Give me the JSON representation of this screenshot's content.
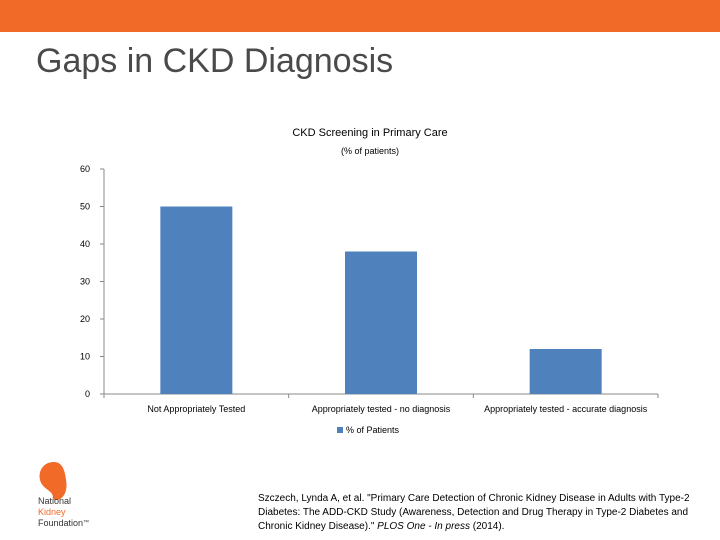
{
  "slide": {
    "title": "Gaps in CKD Diagnosis",
    "accent_color": "#F26A27"
  },
  "chart_data": {
    "type": "bar",
    "title": "CKD Screening in Primary Care",
    "subtitle": "(% of patients)",
    "categories": [
      "Not Appropriately Tested",
      "Appropriately tested - no diagnosis",
      "Appropriately tested - accurate diagnosis"
    ],
    "series": [
      {
        "name": "% of Patients",
        "values": [
          50,
          38,
          12
        ],
        "color": "#4F81BD"
      }
    ],
    "yticks": [
      "0",
      "10",
      "20",
      "30",
      "40",
      "50",
      "60"
    ],
    "ylim": [
      0,
      60
    ],
    "xlabel": "",
    "ylabel": "",
    "legend_position": "bottom"
  },
  "logo": {
    "line1": "National",
    "line2": "Kidney",
    "line3": "Foundation",
    "mark": "™"
  },
  "citation": {
    "part1": "Szczech, Lynda A, et al. \"Primary Care Detection of Chronic Kidney Disease in Adults with Type-2 Diabetes: The ADD-CKD Study (Awareness, Detection and Drug Therapy in Type-2 Diabetes and Chronic Kidney Disease).\" ",
    "journal": "PLOS One - In press",
    "part2": " (2014)."
  }
}
